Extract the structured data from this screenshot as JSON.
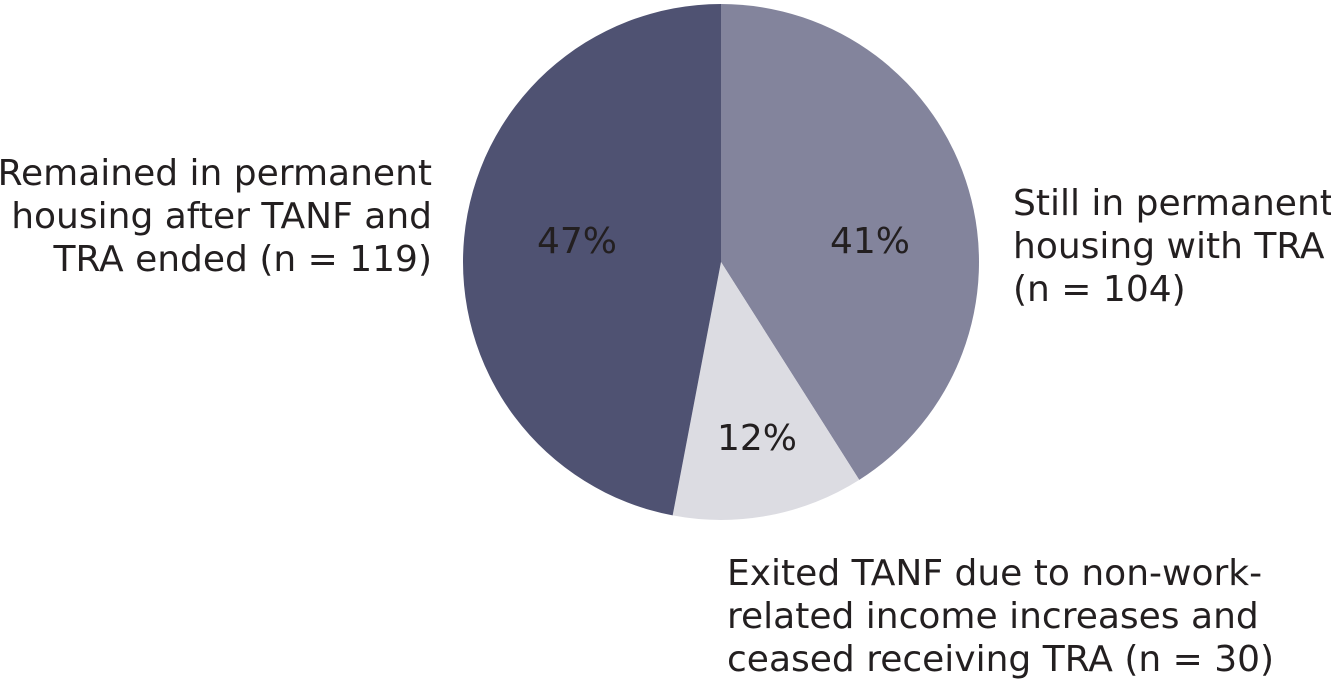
{
  "chart_data": {
    "type": "pie",
    "labels": [
      [
        "Still in permanent",
        "housing with TRA",
        "(n = 104)"
      ],
      [
        "Exited TANF due to non-work-",
        "related income increases and",
        "ceased receiving TRA (n = 30)"
      ],
      [
        "Remained in permanent",
        "housing after TANF and",
        "TRA ended (n = 119)"
      ]
    ],
    "values": [
      41,
      12,
      47
    ],
    "value_labels": [
      "41%",
      "12%",
      "47%"
    ],
    "colors": [
      "#83849c",
      "#dcdce2",
      "#4f5272"
    ]
  }
}
